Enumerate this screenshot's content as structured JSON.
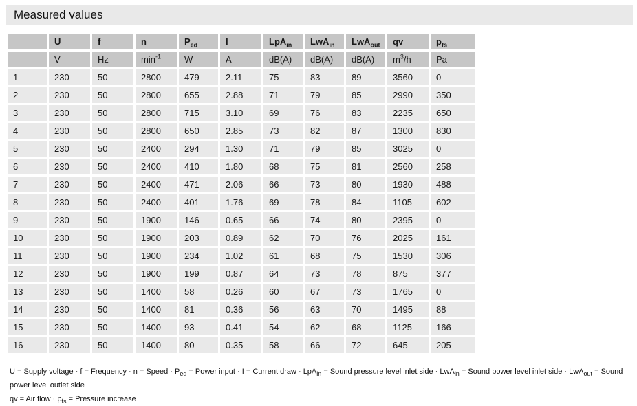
{
  "title": "Measured values",
  "colors": {
    "band_bg": "#e9e9e9",
    "header_bg": "#c6c6c6",
    "row_bg": "#e9e9e9"
  },
  "table": {
    "columns": [
      {
        "label": "",
        "sub": "",
        "unit_pre": "",
        "unit_sup": "",
        "unit_post": ""
      },
      {
        "label": "U",
        "sub": "",
        "unit_pre": "V",
        "unit_sup": "",
        "unit_post": ""
      },
      {
        "label": "f",
        "sub": "",
        "unit_pre": "Hz",
        "unit_sup": "",
        "unit_post": ""
      },
      {
        "label": "n",
        "sub": "",
        "unit_pre": "min",
        "unit_sup": "-1",
        "unit_post": ""
      },
      {
        "label": "P",
        "sub": "ed",
        "unit_pre": "W",
        "unit_sup": "",
        "unit_post": ""
      },
      {
        "label": "I",
        "sub": "",
        "unit_pre": "A",
        "unit_sup": "",
        "unit_post": ""
      },
      {
        "label": "LpA",
        "sub": "in",
        "unit_pre": "dB(A)",
        "unit_sup": "",
        "unit_post": ""
      },
      {
        "label": "LwA",
        "sub": "in",
        "unit_pre": "dB(A)",
        "unit_sup": "",
        "unit_post": ""
      },
      {
        "label": "LwA",
        "sub": "out",
        "unit_pre": "dB(A)",
        "unit_sup": "",
        "unit_post": ""
      },
      {
        "label": "qv",
        "sub": "",
        "unit_pre": "m",
        "unit_sup": "3",
        "unit_post": "/h"
      },
      {
        "label": "p",
        "sub": "fs",
        "unit_pre": "Pa",
        "unit_sup": "",
        "unit_post": ""
      }
    ],
    "rows": [
      [
        "1",
        "230",
        "50",
        "2800",
        "479",
        "2.11",
        "75",
        "83",
        "89",
        "3560",
        "0"
      ],
      [
        "2",
        "230",
        "50",
        "2800",
        "655",
        "2.88",
        "71",
        "79",
        "85",
        "2990",
        "350"
      ],
      [
        "3",
        "230",
        "50",
        "2800",
        "715",
        "3.10",
        "69",
        "76",
        "83",
        "2235",
        "650"
      ],
      [
        "4",
        "230",
        "50",
        "2800",
        "650",
        "2.85",
        "73",
        "82",
        "87",
        "1300",
        "830"
      ],
      [
        "5",
        "230",
        "50",
        "2400",
        "294",
        "1.30",
        "71",
        "79",
        "85",
        "3025",
        "0"
      ],
      [
        "6",
        "230",
        "50",
        "2400",
        "410",
        "1.80",
        "68",
        "75",
        "81",
        "2560",
        "258"
      ],
      [
        "7",
        "230",
        "50",
        "2400",
        "471",
        "2.06",
        "66",
        "73",
        "80",
        "1930",
        "488"
      ],
      [
        "8",
        "230",
        "50",
        "2400",
        "401",
        "1.76",
        "69",
        "78",
        "84",
        "1105",
        "602"
      ],
      [
        "9",
        "230",
        "50",
        "1900",
        "146",
        "0.65",
        "66",
        "74",
        "80",
        "2395",
        "0"
      ],
      [
        "10",
        "230",
        "50",
        "1900",
        "203",
        "0.89",
        "62",
        "70",
        "76",
        "2025",
        "161"
      ],
      [
        "11",
        "230",
        "50",
        "1900",
        "234",
        "1.02",
        "61",
        "68",
        "75",
        "1530",
        "306"
      ],
      [
        "12",
        "230",
        "50",
        "1900",
        "199",
        "0.87",
        "64",
        "73",
        "78",
        "875",
        "377"
      ],
      [
        "13",
        "230",
        "50",
        "1400",
        "58",
        "0.26",
        "60",
        "67",
        "73",
        "1765",
        "0"
      ],
      [
        "14",
        "230",
        "50",
        "1400",
        "81",
        "0.36",
        "56",
        "63",
        "70",
        "1495",
        "88"
      ],
      [
        "15",
        "230",
        "50",
        "1400",
        "93",
        "0.41",
        "54",
        "62",
        "68",
        "1125",
        "166"
      ],
      [
        "16",
        "230",
        "50",
        "1400",
        "80",
        "0.35",
        "58",
        "66",
        "72",
        "645",
        "205"
      ]
    ]
  },
  "legend": {
    "line1": [
      {
        "t": "U = Supply voltage  · f = Frequency  · n = Speed  · P"
      },
      {
        "s": "ed"
      },
      {
        "t": " = Power input  · I = Current draw  · LpA"
      },
      {
        "s": "in"
      },
      {
        "t": " = Sound pressure level inlet side  · LwA"
      },
      {
        "s": "in"
      },
      {
        "t": " = Sound power level inlet side  · LwA"
      },
      {
        "s": "out"
      },
      {
        "t": " = Sound power level outlet side"
      }
    ],
    "line2": [
      {
        "t": "qv = Air flow  · p"
      },
      {
        "s": "fs"
      },
      {
        "t": " = Pressure increase"
      }
    ]
  }
}
